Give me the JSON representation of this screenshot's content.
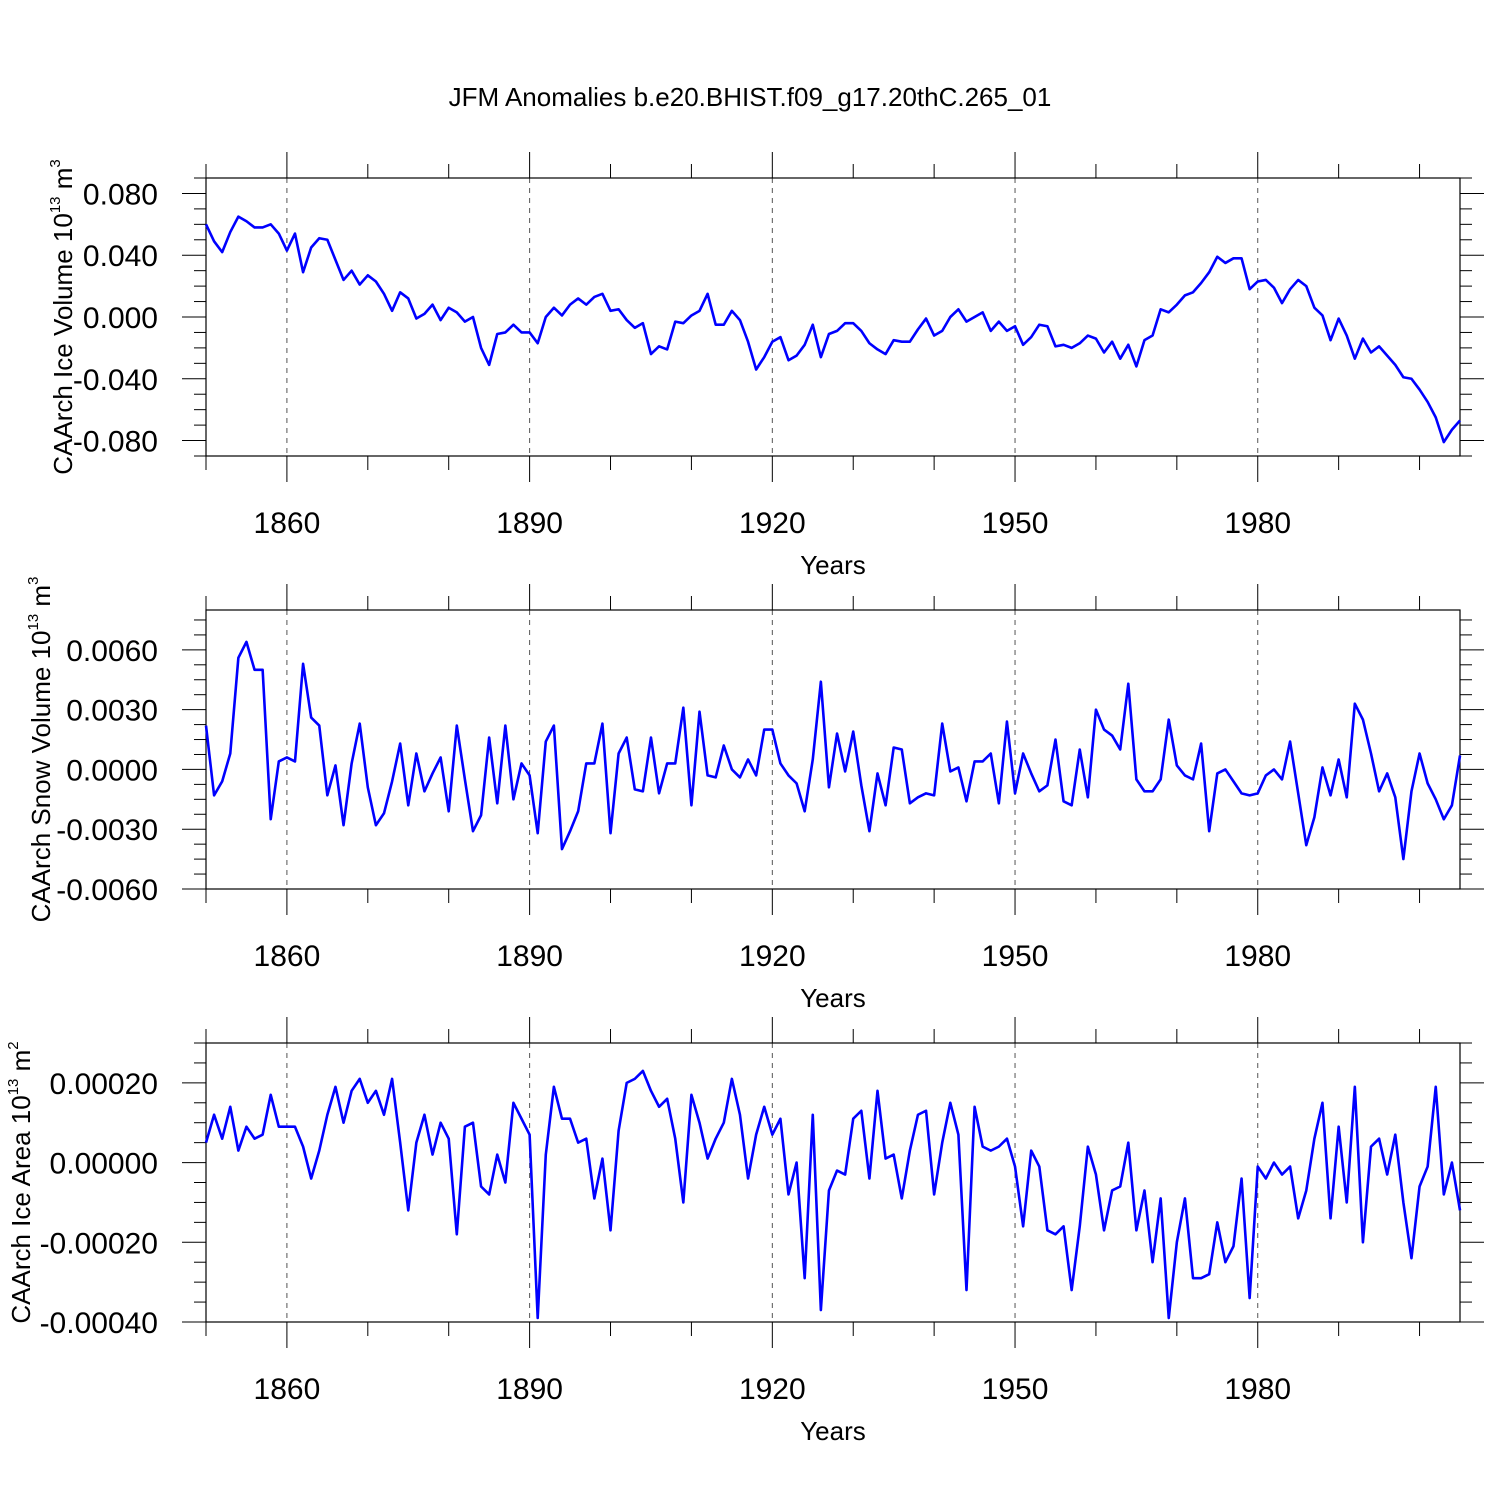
{
  "title": "JFM Anomalies b.e20.BHIST.f09_g17.20thC.265_01",
  "chart_data": [
    {
      "type": "line",
      "ylabel": "CAArch Ice Volume 10",
      "ylabel_exp": "13",
      "ylabel_unit": " m",
      "ylabel_unit_exp": "3",
      "xlabel": "Years",
      "xlim": [
        1850,
        2005
      ],
      "ylim": [
        -0.09,
        0.09
      ],
      "xticks": [
        1860,
        1890,
        1920,
        1950,
        1980
      ],
      "xtick_labels": [
        "1860",
        "1890",
        "1920",
        "1950",
        "1980"
      ],
      "yticks": [
        -0.08,
        -0.04,
        0.0,
        0.04,
        0.08
      ],
      "ytick_labels": [
        "-0.080",
        "-0.040",
        "0.000",
        "0.040",
        "0.080"
      ],
      "line_color": "#0000ff",
      "x_start": 1850,
      "values": [
        0.06,
        0.049,
        0.042,
        0.055,
        0.065,
        0.062,
        0.058,
        0.058,
        0.06,
        0.054,
        0.043,
        0.054,
        0.029,
        0.045,
        0.051,
        0.05,
        0.037,
        0.024,
        0.03,
        0.021,
        0.027,
        0.023,
        0.015,
        0.004,
        0.016,
        0.012,
        -0.001,
        0.002,
        0.008,
        -0.002,
        0.006,
        0.003,
        -0.003,
        0.0,
        -0.02,
        -0.031,
        -0.011,
        -0.01,
        -0.005,
        -0.01,
        -0.01,
        -0.017,
        0.0,
        0.006,
        0.001,
        0.008,
        0.012,
        0.008,
        0.013,
        0.015,
        0.004,
        0.005,
        -0.002,
        -0.007,
        -0.004,
        -0.024,
        -0.019,
        -0.021,
        -0.003,
        -0.004,
        0.001,
        0.004,
        0.015,
        -0.005,
        -0.005,
        0.004,
        -0.002,
        -0.016,
        -0.034,
        -0.026,
        -0.016,
        -0.013,
        -0.028,
        -0.025,
        -0.018,
        -0.005,
        -0.026,
        -0.011,
        -0.009,
        -0.004,
        -0.004,
        -0.009,
        -0.017,
        -0.021,
        -0.024,
        -0.015,
        -0.016,
        -0.016,
        -0.008,
        -0.001,
        -0.012,
        -0.009,
        0.0,
        0.005,
        -0.003,
        0.0,
        0.003,
        -0.009,
        -0.003,
        -0.009,
        -0.006,
        -0.018,
        -0.013,
        -0.005,
        -0.006,
        -0.019,
        -0.018,
        -0.02,
        -0.017,
        -0.012,
        -0.014,
        -0.023,
        -0.016,
        -0.027,
        -0.018,
        -0.032,
        -0.015,
        -0.012,
        0.005,
        0.003,
        0.008,
        0.014,
        0.016,
        0.022,
        0.029,
        0.039,
        0.035,
        0.038,
        0.038,
        0.018,
        0.023,
        0.024,
        0.019,
        0.009,
        0.018,
        0.024,
        0.02,
        0.006,
        0.001,
        -0.015,
        -0.001,
        -0.012,
        -0.027,
        -0.014,
        -0.023,
        -0.019,
        -0.025,
        -0.031,
        -0.039,
        -0.04,
        -0.047,
        -0.055,
        -0.065,
        -0.081,
        -0.073,
        -0.067
      ]
    },
    {
      "type": "line",
      "ylabel": "CAArch Snow Volume 10",
      "ylabel_exp": "13",
      "ylabel_unit": " m",
      "ylabel_unit_exp": "3",
      "xlabel": "Years",
      "xlim": [
        1850,
        2005
      ],
      "ylim": [
        -0.006,
        0.008
      ],
      "xticks": [
        1860,
        1890,
        1920,
        1950,
        1980
      ],
      "xtick_labels": [
        "1860",
        "1890",
        "1920",
        "1950",
        "1980"
      ],
      "yticks": [
        -0.006,
        -0.003,
        0.0,
        0.003,
        0.006
      ],
      "ytick_labels": [
        "-0.0060",
        "-0.0030",
        "0.0000",
        "0.0030",
        "0.0060"
      ],
      "line_color": "#0000ff",
      "x_start": 1850,
      "values": [
        0.0022,
        -0.0013,
        -0.0006,
        0.0008,
        0.0056,
        0.0064,
        0.005,
        0.005,
        -0.0025,
        0.0004,
        0.0006,
        0.0004,
        0.0053,
        0.0026,
        0.0022,
        -0.0013,
        0.0002,
        -0.0028,
        0.0003,
        0.0023,
        -0.0009,
        -0.0028,
        -0.0022,
        -0.0006,
        0.0013,
        -0.0018,
        0.0008,
        -0.0011,
        -0.0002,
        0.0006,
        -0.0021,
        0.0022,
        -0.0005,
        -0.0031,
        -0.0023,
        0.0016,
        -0.0017,
        0.0022,
        -0.0015,
        0.0003,
        -0.0003,
        -0.0032,
        0.0014,
        0.0022,
        -0.004,
        -0.0031,
        -0.0021,
        0.0003,
        0.0003,
        0.0023,
        -0.0032,
        0.0008,
        0.0016,
        -0.001,
        -0.0011,
        0.0016,
        -0.0012,
        0.0003,
        0.0003,
        0.0031,
        -0.0018,
        0.0029,
        -0.0003,
        -0.0004,
        0.0012,
        0.0,
        -0.0004,
        0.0005,
        -0.0003,
        0.002,
        0.002,
        0.0003,
        -0.0003,
        -0.0007,
        -0.0021,
        0.0005,
        0.0044,
        -0.0009,
        0.0018,
        -0.0001,
        0.0019,
        -0.0008,
        -0.0031,
        -0.0002,
        -0.0018,
        0.0011,
        0.001,
        -0.0017,
        -0.0014,
        -0.0012,
        -0.0013,
        0.0023,
        -0.0001,
        0.0001,
        -0.0016,
        0.0004,
        0.0004,
        0.0008,
        -0.0017,
        0.0024,
        -0.0012,
        0.0008,
        -0.0002,
        -0.0011,
        -0.0008,
        0.0015,
        -0.0016,
        -0.0018,
        0.001,
        -0.0014,
        0.003,
        0.002,
        0.0017,
        0.001,
        0.0043,
        -0.0005,
        -0.0011,
        -0.0011,
        -0.0005,
        0.0025,
        0.0002,
        -0.0003,
        -0.0005,
        0.0013,
        -0.0031,
        -0.0002,
        0.0,
        -0.0006,
        -0.0012,
        -0.0013,
        -0.0012,
        -0.0003,
        0.0,
        -0.0005,
        0.0014,
        -0.0012,
        -0.0038,
        -0.0024,
        0.0001,
        -0.0013,
        0.0005,
        -0.0014,
        0.0033,
        0.0025,
        0.0008,
        -0.0011,
        -0.0002,
        -0.0014,
        -0.0045,
        -0.0011,
        0.0008,
        -0.0007,
        -0.0015,
        -0.0025,
        -0.0018,
        0.0007
      ]
    },
    {
      "type": "line",
      "ylabel": "CAArch Ice Area 10",
      "ylabel_exp": "13",
      "ylabel_unit": " m",
      "ylabel_unit_exp": "2",
      "xlabel": "Years",
      "xlim": [
        1850,
        2005
      ],
      "ylim": [
        -0.0004,
        0.0003
      ],
      "xticks": [
        1860,
        1890,
        1920,
        1950,
        1980
      ],
      "xtick_labels": [
        "1860",
        "1890",
        "1920",
        "1950",
        "1980"
      ],
      "yticks": [
        -0.0004,
        -0.0002,
        0.0,
        0.0002
      ],
      "ytick_labels": [
        "-0.00040",
        "-0.00020",
        "0.00000",
        "0.00020"
      ],
      "line_color": "#0000ff",
      "x_start": 1850,
      "values": [
        5e-05,
        0.00012,
        6e-05,
        0.00014,
        3e-05,
        9e-05,
        6e-05,
        7e-05,
        0.00017,
        9e-05,
        9e-05,
        9e-05,
        4e-05,
        -4e-05,
        3e-05,
        0.00012,
        0.00019,
        0.0001,
        0.00018,
        0.00021,
        0.00015,
        0.00018,
        0.00012,
        0.00021,
        5e-05,
        -0.00012,
        5e-05,
        0.00012,
        2e-05,
        0.0001,
        6e-05,
        -0.00018,
        9e-05,
        0.0001,
        -6e-05,
        -8e-05,
        2e-05,
        -5e-05,
        0.00015,
        0.00011,
        7e-05,
        -0.00039,
        2e-05,
        0.00019,
        0.00011,
        0.00011,
        5e-05,
        6e-05,
        -9e-05,
        1e-05,
        -0.00017,
        8e-05,
        0.0002,
        0.00021,
        0.00023,
        0.00018,
        0.00014,
        0.00016,
        6e-05,
        -0.0001,
        0.00017,
        0.0001,
        1e-05,
        6e-05,
        0.0001,
        0.00021,
        0.00012,
        -4e-05,
        7e-05,
        0.00014,
        7e-05,
        0.00011,
        -8e-05,
        0.0,
        -0.00029,
        0.00012,
        -0.00037,
        -7e-05,
        -2e-05,
        -3e-05,
        0.00011,
        0.00013,
        -4e-05,
        0.00018,
        1e-05,
        2e-05,
        -9e-05,
        3e-05,
        0.00012,
        0.00013,
        -8e-05,
        5e-05,
        0.00015,
        7e-05,
        -0.00032,
        0.00014,
        4e-05,
        3e-05,
        4e-05,
        6e-05,
        -1e-05,
        -0.00016,
        3e-05,
        -1e-05,
        -0.00017,
        -0.00018,
        -0.00016,
        -0.00032,
        -0.00016,
        4e-05,
        -3e-05,
        -0.00017,
        -7e-05,
        -6e-05,
        5e-05,
        -0.00017,
        -7e-05,
        -0.00025,
        -9e-05,
        -0.00039,
        -0.0002,
        -9e-05,
        -0.00029,
        -0.00029,
        -0.00028,
        -0.00015,
        -0.00025,
        -0.00021,
        -4e-05,
        -0.00034,
        -1e-05,
        -4e-05,
        0.0,
        -3e-05,
        -1e-05,
        -0.00014,
        -7e-05,
        6e-05,
        0.00015,
        -0.00014,
        9e-05,
        -0.0001,
        0.00019,
        -0.0002,
        4e-05,
        6e-05,
        -3e-05,
        7e-05,
        -0.0001,
        -0.00024,
        -6e-05,
        -1e-05,
        0.00019,
        -8e-05,
        0.0,
        -0.00012
      ]
    }
  ]
}
